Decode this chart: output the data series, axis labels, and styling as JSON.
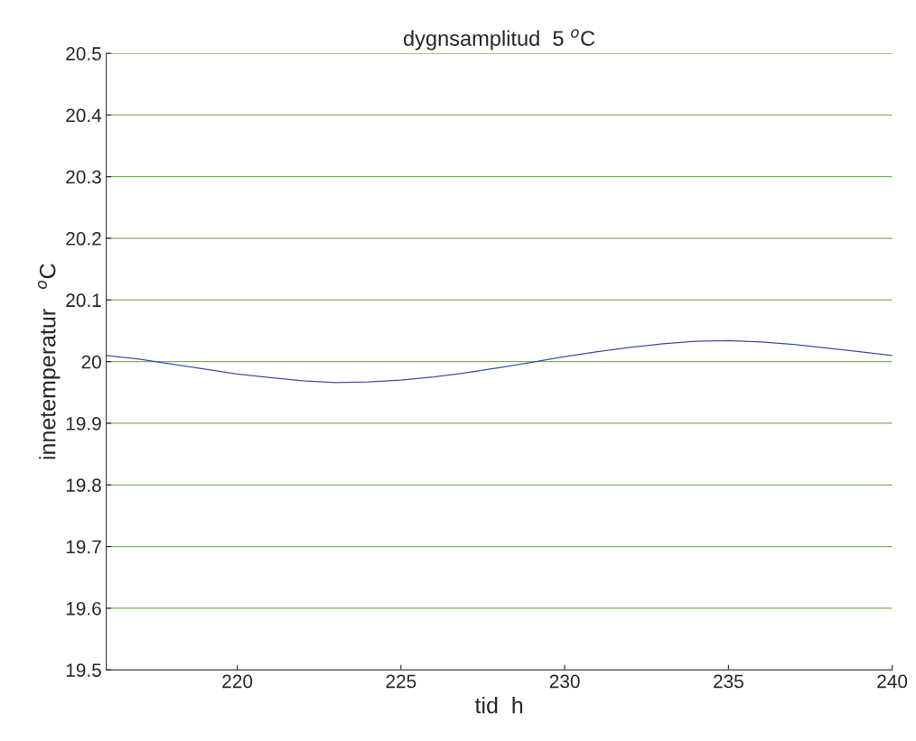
{
  "chart_data": {
    "type": "line",
    "title": "dygnsamplitud  5 $^{o}$C",
    "xlabel": "tid  h",
    "ylabel": "innetemperatur   $^{o}$C",
    "x": [
      216,
      217,
      218,
      219,
      220,
      221,
      222,
      223,
      224,
      225,
      226,
      227,
      228,
      229,
      230,
      231,
      232,
      233,
      234,
      235,
      236,
      237,
      238,
      239,
      240
    ],
    "series": [
      {
        "color": "#3f51a3",
        "values": [
          20.01,
          20.004,
          19.996,
          19.988,
          19.98,
          19.974,
          19.969,
          19.966,
          19.967,
          19.97,
          19.975,
          19.982,
          19.99,
          19.999,
          20.008,
          20.016,
          20.023,
          20.029,
          20.033,
          20.034,
          20.032,
          20.028,
          20.022,
          20.016,
          20.01
        ]
      }
    ],
    "xlim": [
      216,
      240
    ],
    "xticks": [
      220,
      225,
      230,
      235,
      240
    ],
    "ylim": [
      19.5,
      20.5
    ],
    "yticks": [
      19.5,
      19.6,
      19.7,
      19.8,
      19.9,
      20,
      20.1,
      20.2,
      20.3,
      20.4,
      20.5
    ],
    "grid": "y"
  }
}
